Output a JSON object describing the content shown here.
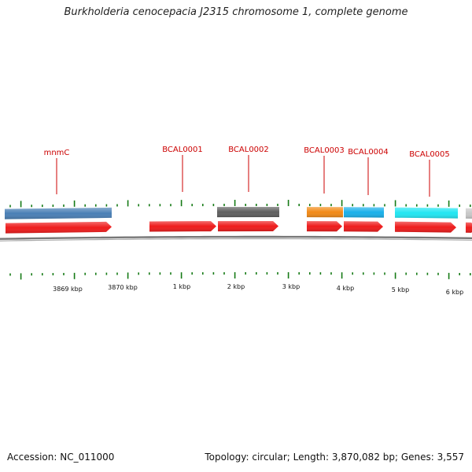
{
  "title": "Burkholderia cenocepacia J2315 chromosome 1, complete genome",
  "footer": {
    "accession": "Accession: NC_011000",
    "summary": "Topology: circular; Length: 3,870,082 bp; Genes: 3,557"
  },
  "colors": {
    "cds_red": "#ee1c1c",
    "gene_steel_blue": "#4a7fb5",
    "gene_dark_gray": "#5f5f5f",
    "gene_orange": "#f28a17",
    "gene_deep_sky": "#1ab0ea",
    "gene_cyan": "#22e6f2",
    "gene_light_gray": "#c8c8c8",
    "label_red": "#cc0000",
    "tick_green": "#157a15",
    "backbone_gray": "#777777"
  },
  "scale_labels": [
    "3869 kbp",
    "3870 kbp",
    "1 kbp",
    "2 kbp",
    "3 kbp",
    "4 kbp",
    "5 kbp",
    "6 kbp"
  ],
  "gene_labels": [
    "mnmC",
    "BCAL0001",
    "BCAL0002",
    "BCAL0003",
    "BCAL0004",
    "BCAL0005"
  ]
}
